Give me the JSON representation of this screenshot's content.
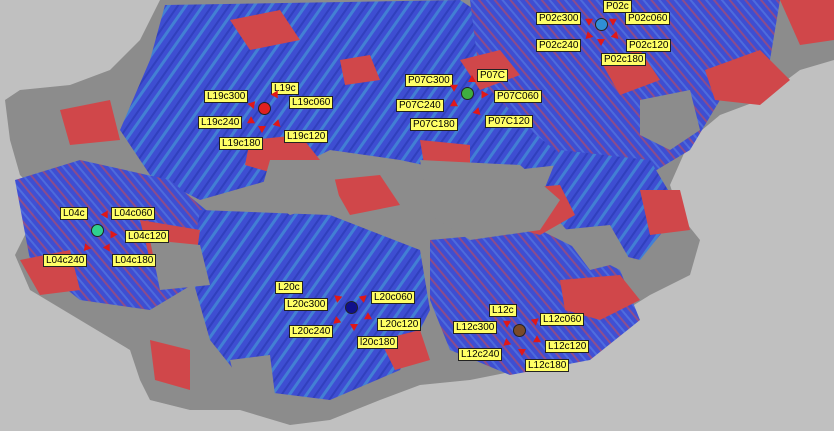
{
  "map": {
    "colors": {
      "background": "#c0c0c0",
      "terrain": "#8c8c8c",
      "coverage_blue": "#3a4bd6",
      "coverage_light_blue": "#3f7fd8",
      "coverage_red": "#d0474a",
      "label_bg": "#ffff66",
      "arrow": "#e01818"
    },
    "sites": [
      {
        "id": "P02c",
        "color": "#2f8fd6",
        "sectors": [
          "P02c300",
          "P02c060",
          "P02c240",
          "P02c120",
          "P02c180"
        ]
      },
      {
        "id": "P07C",
        "color": "#3fae3f",
        "sectors": [
          "P07C300",
          "P07C060",
          "P07C240",
          "P07C120",
          "P07C180"
        ]
      },
      {
        "id": "L19c",
        "color": "#e02020",
        "sectors": [
          "L19c300",
          "L19c060",
          "L19c240",
          "L19c120",
          "L19c180"
        ]
      },
      {
        "id": "L04c",
        "color": "#2fd08f",
        "sectors": [
          "L04c060",
          "L04c120",
          "L04c240",
          "L04c180"
        ]
      },
      {
        "id": "L20c",
        "color": "#10108a",
        "sectors": [
          "L20c300",
          "L20c060",
          "L20c120",
          "L20c240",
          "l20c180"
        ]
      },
      {
        "id": "L12c",
        "color": "#7a4a2a",
        "sectors": [
          "L12c300",
          "L12c060",
          "L12c120",
          "L12c240",
          "L12c180"
        ]
      }
    ]
  }
}
